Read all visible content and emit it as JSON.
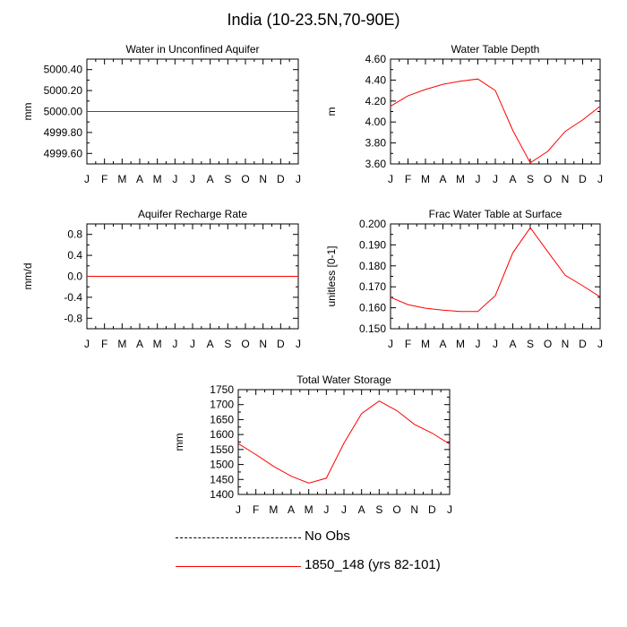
{
  "figure": {
    "title": "India (10-23.5N,70-90E)"
  },
  "legend": {
    "entries": [
      {
        "label": "No Obs",
        "style": "dashed",
        "color": "#000000"
      },
      {
        "label": "1850_148 (yrs 82-101)",
        "style": "solid",
        "color": "#ff0000"
      }
    ]
  },
  "colors": {
    "series": "#ff0000",
    "axis": "#000000"
  },
  "chart_data": [
    {
      "type": "line",
      "title": "Water in Unconfined Aquifer",
      "ylabel": "mm",
      "xlabel": "",
      "categories": [
        "J",
        "F",
        "M",
        "A",
        "M",
        "J",
        "J",
        "A",
        "S",
        "O",
        "N",
        "D",
        "J"
      ],
      "ylim": [
        4999.5,
        5000.5
      ],
      "yticks": [
        4999.6,
        4999.8,
        5000.0,
        5000.2,
        5000.4
      ],
      "ytick_labels": [
        "4999.60",
        "4999.80",
        "5000.00",
        "5000.20",
        "5000.40"
      ],
      "series": [
        {
          "name": "1850_148 (yrs 82-101)",
          "values": [
            5000,
            5000,
            5000,
            5000,
            5000,
            5000,
            5000,
            5000,
            5000,
            5000,
            5000,
            5000,
            5000
          ]
        }
      ]
    },
    {
      "type": "line",
      "title": "Water Table Depth",
      "ylabel": "m",
      "xlabel": "",
      "categories": [
        "J",
        "F",
        "M",
        "A",
        "M",
        "J",
        "J",
        "A",
        "S",
        "O",
        "N",
        "D",
        "J"
      ],
      "ylim": [
        3.6,
        4.6
      ],
      "yticks": [
        3.6,
        3.8,
        4.0,
        4.2,
        4.4,
        4.6
      ],
      "ytick_labels": [
        "3.60",
        "3.80",
        "4.00",
        "4.20",
        "4.40",
        "4.60"
      ],
      "series": [
        {
          "name": "1850_148 (yrs 82-101)",
          "values": [
            4.15,
            4.25,
            4.31,
            4.36,
            4.39,
            4.41,
            4.3,
            3.92,
            3.61,
            3.72,
            3.91,
            4.02,
            4.15
          ]
        }
      ]
    },
    {
      "type": "line",
      "title": "Aquifer Recharge Rate",
      "ylabel": "mm/d",
      "xlabel": "",
      "categories": [
        "J",
        "F",
        "M",
        "A",
        "M",
        "J",
        "J",
        "A",
        "S",
        "O",
        "N",
        "D",
        "J"
      ],
      "ylim": [
        -1.0,
        1.0
      ],
      "yticks": [
        -0.8,
        -0.4,
        0.0,
        0.4,
        0.8
      ],
      "ytick_labels": [
        "-0.8",
        "-0.4",
        "0.0",
        "0.4",
        "0.8"
      ],
      "series": [
        {
          "name": "1850_148 (yrs 82-101)",
          "values": [
            0,
            0,
            0,
            0,
            0,
            0,
            0,
            0,
            0,
            0,
            0,
            0,
            0
          ]
        }
      ]
    },
    {
      "type": "line",
      "title": "Frac Water Table at Surface",
      "ylabel": "unitless [0-1]",
      "xlabel": "",
      "categories": [
        "J",
        "F",
        "M",
        "A",
        "M",
        "J",
        "J",
        "A",
        "S",
        "O",
        "N",
        "D",
        "J"
      ],
      "ylim": [
        0.15,
        0.2
      ],
      "yticks": [
        0.15,
        0.16,
        0.17,
        0.18,
        0.19,
        0.2
      ],
      "ytick_labels": [
        "0.150",
        "0.160",
        "0.170",
        "0.180",
        "0.190",
        "0.200"
      ],
      "series": [
        {
          "name": "1850_148 (yrs 82-101)",
          "values": [
            0.165,
            0.1615,
            0.1598,
            0.1589,
            0.1582,
            0.1582,
            0.1658,
            0.1862,
            0.1982,
            0.1868,
            0.1755,
            0.1705,
            0.1652
          ]
        }
      ]
    },
    {
      "type": "line",
      "title": "Total Water Storage",
      "ylabel": "mm",
      "xlabel": "",
      "categories": [
        "J",
        "F",
        "M",
        "A",
        "M",
        "J",
        "J",
        "A",
        "S",
        "O",
        "N",
        "D",
        "J"
      ],
      "ylim": [
        1400,
        1750
      ],
      "yticks": [
        1400,
        1450,
        1500,
        1550,
        1600,
        1650,
        1700,
        1750
      ],
      "ytick_labels": [
        "1400",
        "1450",
        "1500",
        "1550",
        "1600",
        "1650",
        "1700",
        "1750"
      ],
      "series": [
        {
          "name": "1850_148 (yrs 82-101)",
          "values": [
            1570,
            1533,
            1494,
            1461,
            1438,
            1454,
            1571,
            1670,
            1712,
            1680,
            1634,
            1605,
            1568
          ]
        }
      ]
    }
  ]
}
